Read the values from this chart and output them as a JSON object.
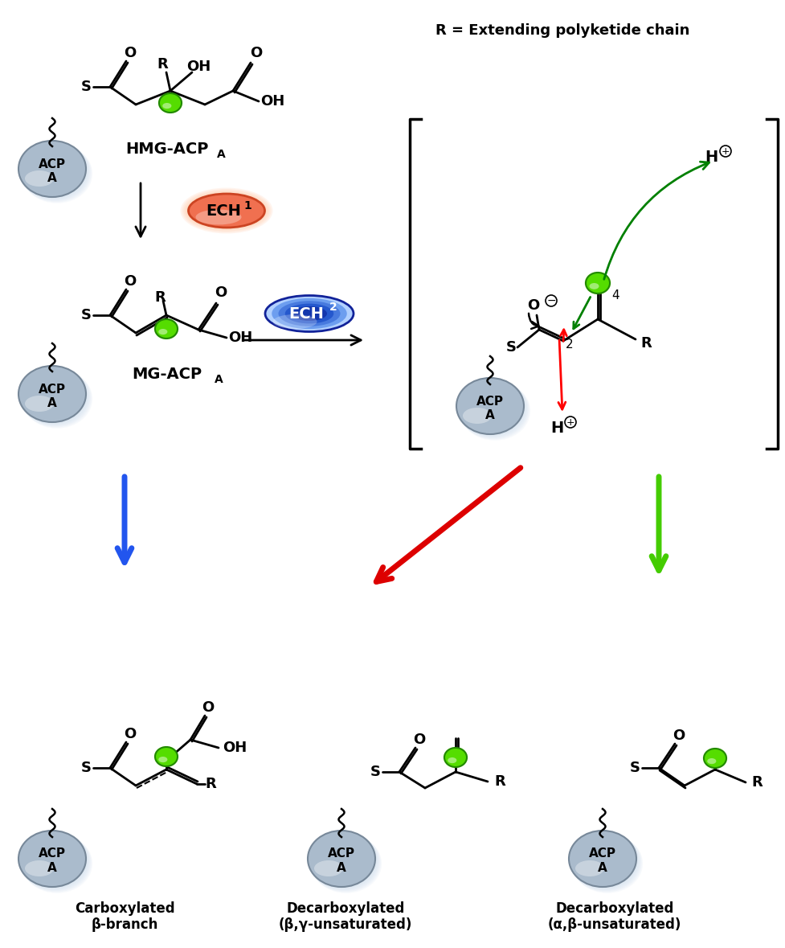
{
  "background_color": "#ffffff",
  "green_ball_color": "#55dd00",
  "green_ball_edge": "#228800",
  "blue_arrow_color": "#2255ee",
  "red_arrow_color": "#dd0000",
  "green_arrow_color": "#44cc00",
  "ech1_fill": "#f07050",
  "ech1_edge": "#cc4422",
  "ech2_fill_top": "#6699ff",
  "ech2_fill_bot": "#2244cc",
  "acp_fill": "#aabbcc",
  "acp_edge": "#778899",
  "bond_lw": 2.0,
  "text_R_label": "R = Extending polyketide chain",
  "label_carboxylated": "Carboxylated\nβ-branch",
  "label_decarboxylated1": "Decarboxylated\n(β,γ-unsaturated)",
  "label_decarboxylated2": "Decarboxylated\n(α,β-unsaturated)"
}
